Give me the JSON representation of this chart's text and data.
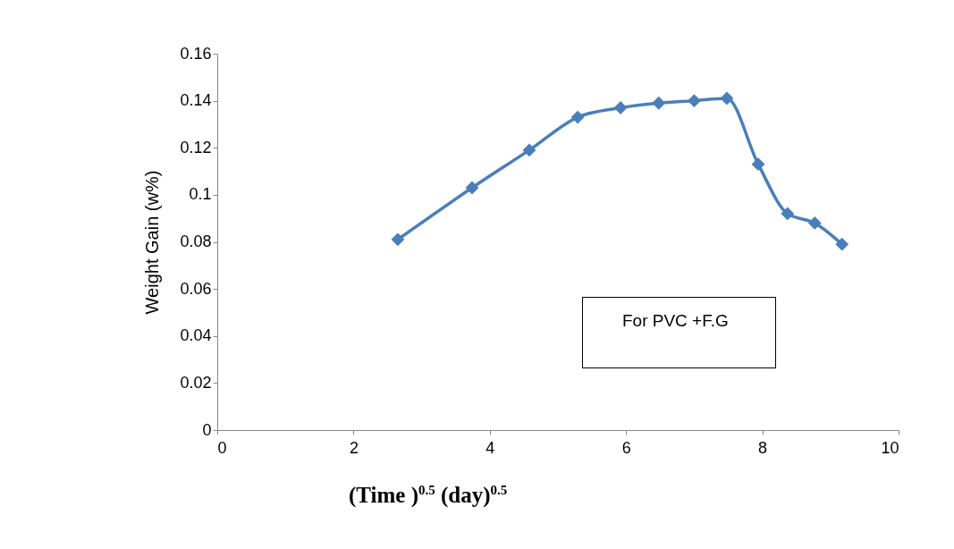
{
  "chart_data": {
    "type": "line",
    "xlabel": "(Time )$^{0.5}$ (day)$^{0.5}$",
    "ylabel": "Weight Gain (w%)",
    "x": [
      2.65,
      3.74,
      4.58,
      5.29,
      5.92,
      6.48,
      7,
      7.48,
      7.94,
      8.37,
      8.77,
      9.17
    ],
    "series": [
      {
        "color": "#4a7ebb",
        "values": [
          0.081,
          0.103,
          0.119,
          0.133,
          0.137,
          0.139,
          0.14,
          0.141,
          0.113,
          0.092,
          0.088,
          0.079
        ]
      }
    ],
    "xlim": [
      0,
      10
    ],
    "xticks": [
      0,
      2,
      4,
      6,
      8,
      10
    ],
    "ylim": [
      0,
      0.16
    ],
    "yticks": [
      0,
      0.02,
      0.04,
      0.06,
      0.08,
      0.1,
      0.12,
      0.14,
      0.16
    ],
    "grid": false,
    "marker": "diamond",
    "line_style": "solid",
    "annotations": [
      "For PVC +F.G"
    ]
  }
}
